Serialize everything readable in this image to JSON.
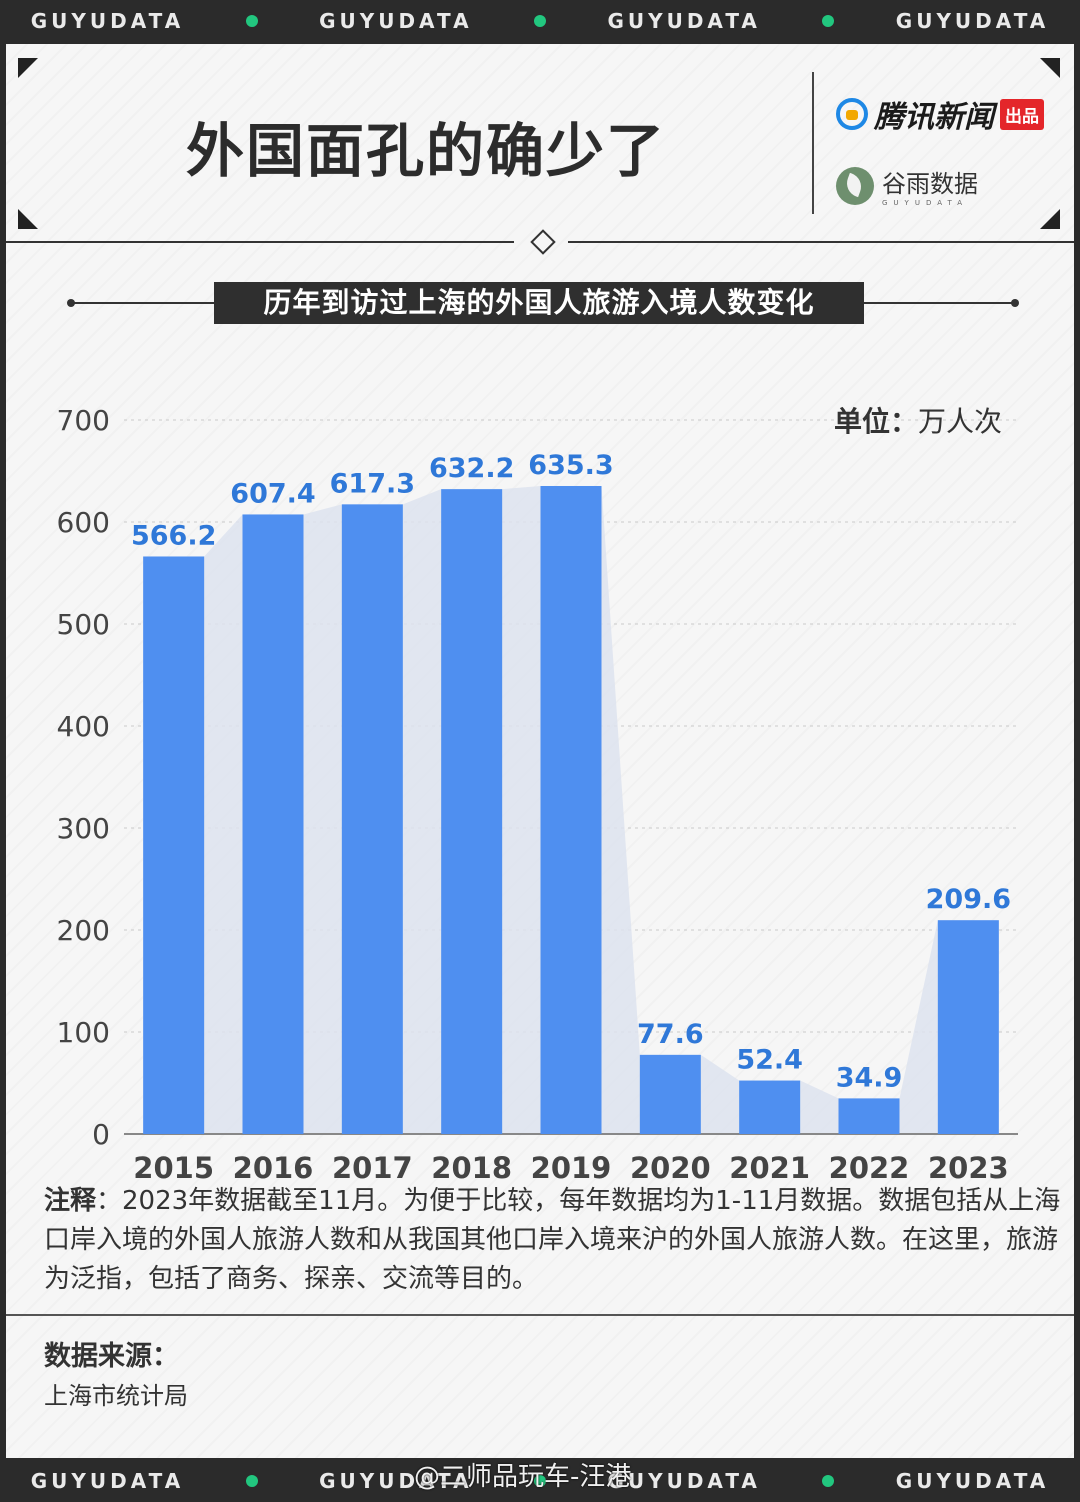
{
  "band_text": "GUYUDATA",
  "header": {
    "title": "外国面孔的确少了",
    "brand1_name": "腾讯新闻",
    "brand1_tag": "出品",
    "brand2_name": "谷雨数据",
    "brand2_sub": "GUYUDATA"
  },
  "unit": {
    "label": "单位：",
    "value": "万人次"
  },
  "chart_data": {
    "type": "bar",
    "title": "历年到访过上海的外国人旅游入境人数变化",
    "categories": [
      "2015",
      "2016",
      "2017",
      "2018",
      "2019",
      "2020",
      "2021",
      "2022",
      "2023"
    ],
    "values": [
      566.2,
      607.4,
      617.3,
      632.2,
      635.3,
      77.6,
      52.4,
      34.9,
      209.6
    ],
    "value_labels": [
      "566.2",
      "607.4",
      "617.3",
      "632.2",
      "635.3",
      "77.6",
      "52.4",
      "34.9",
      "209.6"
    ],
    "yticks": [
      "0",
      "100",
      "200",
      "300",
      "400",
      "500",
      "600",
      "700"
    ],
    "ylim": [
      0,
      700
    ],
    "grid": true,
    "colors": {
      "bar": "#4f8ff0",
      "area": "#dde3ee",
      "label": "#2f78d8"
    }
  },
  "note": {
    "label": "注释",
    "text": "：2023年数据截至11月。为便于比较，每年数据均为1-11月数据。数据包括从上海口岸入境的外国人旅游人数和从我国其他口岸入境来沪的外国人旅游人数。在这里，旅游为泛指，包括了商务、探亲、交流等目的。"
  },
  "source": {
    "label": "数据来源：",
    "value": "上海市统计局"
  },
  "watermark": "@二师品玩车-汪港"
}
